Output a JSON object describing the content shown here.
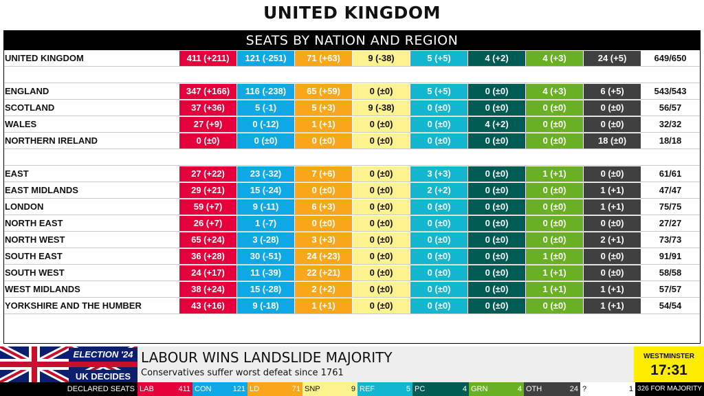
{
  "page_title": "UNITED KINGDOM",
  "table": {
    "heading": "SEATS BY NATION AND REGION",
    "national": [
      {
        "label": "UNITED KINGDOM",
        "lab": "411 (+211)",
        "con": "121 (-251)",
        "ld": "71 (+63)",
        "snp": "9 (-38)",
        "ref": "5 (+5)",
        "pc": "4 (+2)",
        "grn": "4 (+3)",
        "oth": "24 (+5)",
        "total": "649/650"
      }
    ],
    "nations": [
      {
        "label": "ENGLAND",
        "lab": "347 (+166)",
        "con": "116 (-238)",
        "ld": "65 (+59)",
        "snp": "0 (±0)",
        "ref": "5 (+5)",
        "pc": "0 (±0)",
        "grn": "4 (+3)",
        "oth": "6 (+5)",
        "total": "543/543"
      },
      {
        "label": "SCOTLAND",
        "lab": "37 (+36)",
        "con": "5 (-1)",
        "ld": "5 (+3)",
        "snp": "9 (-38)",
        "ref": "0 (±0)",
        "pc": "0 (±0)",
        "grn": "0 (±0)",
        "oth": "0 (±0)",
        "total": "56/57"
      },
      {
        "label": "WALES",
        "lab": "27 (+9)",
        "con": "0 (-12)",
        "ld": "1 (+1)",
        "snp": "0 (±0)",
        "ref": "0 (±0)",
        "pc": "4 (+2)",
        "grn": "0 (±0)",
        "oth": "0 (±0)",
        "total": "32/32"
      },
      {
        "label": "NORTHERN IRELAND",
        "lab": "0 (±0)",
        "con": "0 (±0)",
        "ld": "0 (±0)",
        "snp": "0 (±0)",
        "ref": "0 (±0)",
        "pc": "0 (±0)",
        "grn": "0 (±0)",
        "oth": "18 (±0)",
        "total": "18/18"
      }
    ],
    "regions": [
      {
        "label": "EAST",
        "lab": "27 (+22)",
        "con": "23 (-32)",
        "ld": "7 (+6)",
        "snp": "0 (±0)",
        "ref": "3 (+3)",
        "pc": "0 (±0)",
        "grn": "1 (+1)",
        "oth": "0 (±0)",
        "total": "61/61"
      },
      {
        "label": "EAST MIDLANDS",
        "lab": "29 (+21)",
        "con": "15 (-24)",
        "ld": "0 (±0)",
        "snp": "0 (±0)",
        "ref": "2 (+2)",
        "pc": "0 (±0)",
        "grn": "0 (±0)",
        "oth": "1 (+1)",
        "total": "47/47"
      },
      {
        "label": "LONDON",
        "lab": "59 (+7)",
        "con": "9 (-11)",
        "ld": "6 (+3)",
        "snp": "0 (±0)",
        "ref": "0 (±0)",
        "pc": "0 (±0)",
        "grn": "0 (±0)",
        "oth": "1 (+1)",
        "total": "75/75"
      },
      {
        "label": "NORTH EAST",
        "lab": "26 (+7)",
        "con": "1 (-7)",
        "ld": "0 (±0)",
        "snp": "0 (±0)",
        "ref": "0 (±0)",
        "pc": "0 (±0)",
        "grn": "0 (±0)",
        "oth": "0 (±0)",
        "total": "27/27"
      },
      {
        "label": "NORTH WEST",
        "lab": "65 (+24)",
        "con": "3 (-28)",
        "ld": "3 (+3)",
        "snp": "0 (±0)",
        "ref": "0 (±0)",
        "pc": "0 (±0)",
        "grn": "0 (±0)",
        "oth": "2 (+1)",
        "total": "73/73"
      },
      {
        "label": "SOUTH EAST",
        "lab": "36 (+28)",
        "con": "30 (-51)",
        "ld": "24 (+23)",
        "snp": "0 (±0)",
        "ref": "0 (±0)",
        "pc": "0 (±0)",
        "grn": "1 (±0)",
        "oth": "0 (±0)",
        "total": "91/91"
      },
      {
        "label": "SOUTH WEST",
        "lab": "24 (+17)",
        "con": "11 (-39)",
        "ld": "22 (+21)",
        "snp": "0 (±0)",
        "ref": "0 (±0)",
        "pc": "0 (±0)",
        "grn": "1 (+1)",
        "oth": "0 (±0)",
        "total": "58/58"
      },
      {
        "label": "WEST MIDLANDS",
        "lab": "38 (+24)",
        "con": "15 (-28)",
        "ld": "2 (+2)",
        "snp": "0 (±0)",
        "ref": "0 (±0)",
        "pc": "0 (±0)",
        "grn": "1 (+1)",
        "oth": "1 (+1)",
        "total": "57/57"
      },
      {
        "label": "YORKSHIRE AND THE HUMBER",
        "lab": "43 (+16)",
        "con": "9 (-18)",
        "ld": "1 (+1)",
        "snp": "0 (±0)",
        "ref": "0 (±0)",
        "pc": "0 (±0)",
        "grn": "0 (±0)",
        "oth": "1 (+1)",
        "total": "54/54"
      }
    ]
  },
  "lower_third": {
    "election_label": "ELECTION '24",
    "decides_label": "UK DECIDES",
    "headline": "LABOUR WINS LANDSLIDE MAJORITY",
    "subhead": "Conservatives suffer worst defeat since 1761",
    "clock_label": "WESTMINSTER",
    "clock_time": "17:31"
  },
  "ticker": {
    "declared_label": "DECLARED SEATS",
    "parties": [
      {
        "key": "lab",
        "name": "LAB",
        "value": "411"
      },
      {
        "key": "con",
        "name": "CON",
        "value": "121"
      },
      {
        "key": "ld",
        "name": "LD",
        "value": "71"
      },
      {
        "key": "snp",
        "name": "SNP",
        "value": "9"
      },
      {
        "key": "ref",
        "name": "REF",
        "value": "5"
      },
      {
        "key": "pc",
        "name": "PC",
        "value": "4"
      },
      {
        "key": "grn",
        "name": "GRN",
        "value": "4"
      },
      {
        "key": "oth",
        "name": "OTH",
        "value": "24"
      },
      {
        "key": "unk",
        "name": "?",
        "value": "1"
      }
    ],
    "majority_label": "326 FOR MAJORITY"
  },
  "colors": {
    "lab": "#e4003b",
    "con": "#0fa8e6",
    "ld": "#faa61a",
    "snp": "#fdf38e",
    "ref": "#12b6cf",
    "pc": "#005b54",
    "grn": "#6ab023",
    "oth": "#404040"
  }
}
